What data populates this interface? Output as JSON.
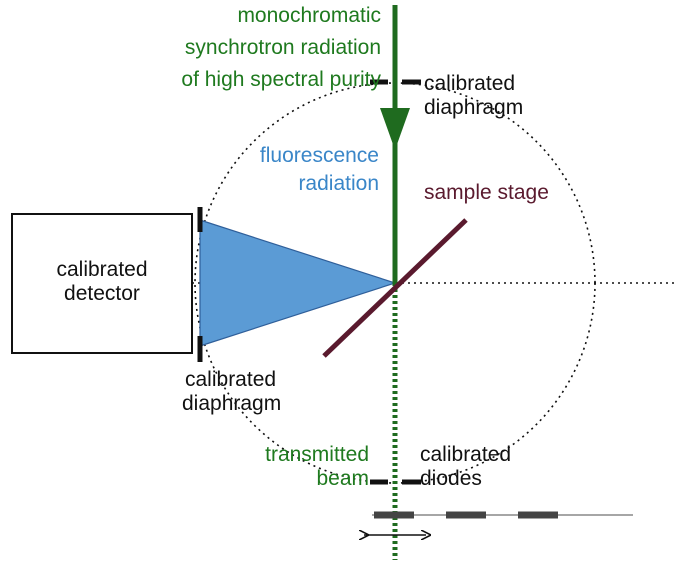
{
  "labels": {
    "beam_line1": "monochromatic",
    "beam_line2": "synchrotron radiation",
    "beam_line3": "of high spectral purity",
    "diaphragm_top_line1": "calibrated",
    "diaphragm_top_line2": "diaphragm",
    "fluorescence_line1": "fluorescence",
    "fluorescence_line2": "radiation",
    "sample_stage": "sample stage",
    "detector_line1": "calibrated",
    "detector_line2": "detector",
    "diaphragm_left_line1": "calibrated",
    "diaphragm_left_line2": "diaphragm",
    "transmitted_line1": "transmitted",
    "transmitted_line2": "beam",
    "diodes_line1": "calibrated",
    "diodes_line2": "diodes"
  },
  "colors": {
    "beam": "#1f6b1f",
    "beam_text": "#1f7a1f",
    "fluorescence_fill": "#5b9bd5",
    "fluorescence_stroke": "#2f5f9a",
    "fluorescence_text": "#3a86c8",
    "sample_stage": "#5a1a2e",
    "hardware": "#111111",
    "stage_rail": "#444444"
  }
}
